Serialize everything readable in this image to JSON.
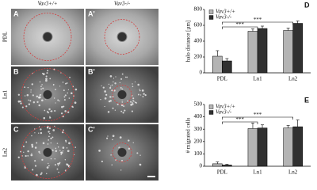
{
  "columns": [
    "Vav3+/+",
    "Vav3-/-"
  ],
  "rows": [
    "PDL",
    "Ln1",
    "Ln2"
  ],
  "panels": [
    {
      "label": "A"
    },
    {
      "label": "A'"
    },
    {
      "label": "B"
    },
    {
      "label": "B'"
    },
    {
      "label": "C"
    },
    {
      "label": "C'"
    }
  ],
  "chart_data": [
    {
      "type": "bar",
      "panel_label": "D",
      "y_label": "halo distance [µm]",
      "categories": [
        "PDL",
        "Ln1",
        "Ln2"
      ],
      "series": [
        {
          "name": "Vav3+/+",
          "color": "#b4b4b4",
          "values": [
            210,
            525,
            535
          ],
          "errors": [
            70,
            30,
            30
          ]
        },
        {
          "name": "Vav3-/-",
          "color": "#303030",
          "values": [
            150,
            560,
            625
          ],
          "errors": [
            30,
            30,
            30
          ]
        }
      ],
      "ylim": [
        0,
        800
      ],
      "yticks": [
        0,
        200,
        400,
        600,
        800
      ],
      "annotations": [
        "***",
        "***"
      ]
    },
    {
      "type": "bar",
      "panel_label": "E",
      "y_label": "# migrated cells",
      "categories": [
        "PDL",
        "Ln1",
        "Ln2"
      ],
      "series": [
        {
          "name": "Vav3+/+",
          "color": "#b4b4b4",
          "values": [
            20,
            305,
            310
          ],
          "errors": [
            15,
            45,
            20
          ]
        },
        {
          "name": "Vav3-/-",
          "color": "#303030",
          "values": [
            10,
            310,
            320
          ],
          "errors": [
            5,
            25,
            55
          ]
        }
      ],
      "ylim": [
        0,
        500
      ],
      "yticks": [
        0,
        100,
        200,
        300,
        400,
        500
      ],
      "annotations": [
        "***",
        "***"
      ]
    }
  ]
}
